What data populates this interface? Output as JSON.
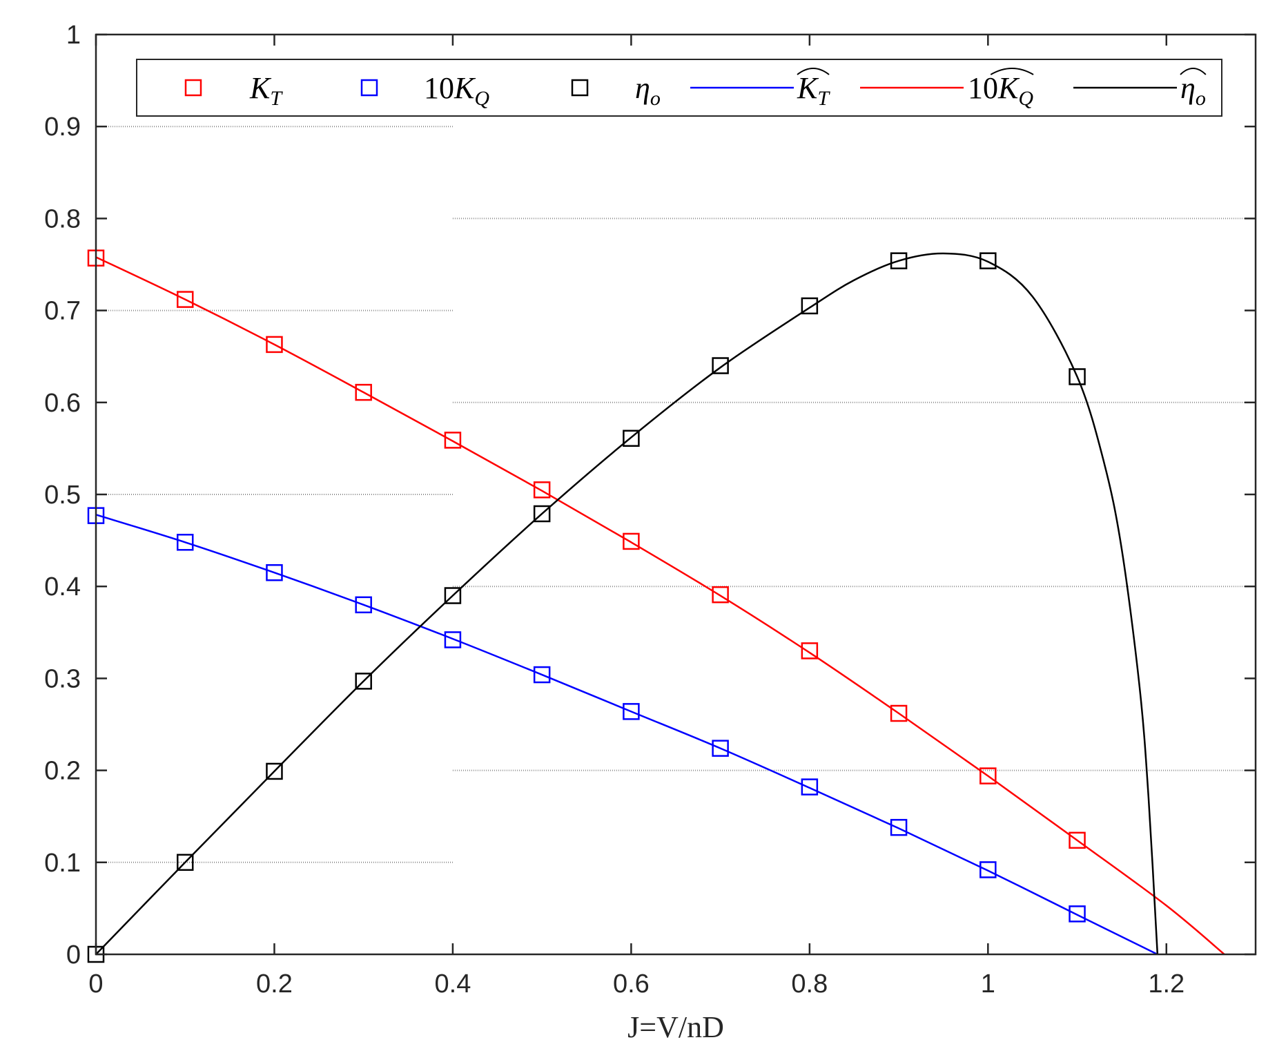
{
  "chart_data": {
    "type": "line",
    "title": "",
    "xlabel": "J=V/nD",
    "ylabel": "",
    "xlim": [
      0,
      1.3
    ],
    "ylim": [
      0,
      1
    ],
    "xticks": [
      "0",
      "0.2",
      "0.4",
      "0.6",
      "0.8",
      "1",
      "1.2"
    ],
    "yticks": [
      "0",
      "0.1",
      "0.2",
      "0.3",
      "0.4",
      "0.5",
      "0.6",
      "0.7",
      "0.8",
      "0.9",
      "1"
    ],
    "grid": "horizontal dotted lines",
    "legend_position": "top",
    "colors": {
      "red": "#ff0000",
      "blue": "#0000ff",
      "black": "#000000"
    },
    "series": [
      {
        "name": "K_T",
        "label": "K",
        "sub": "T",
        "hat": false,
        "style": "markers",
        "marker": "square",
        "color": "#ff0000",
        "x": [
          0,
          0.1,
          0.2,
          0.3,
          0.4,
          0.5,
          0.6,
          0.7,
          0.8,
          0.9,
          1.0,
          1.1
        ],
        "y": [
          0.757,
          0.712,
          0.663,
          0.611,
          0.559,
          0.505,
          0.449,
          0.391,
          0.33,
          0.262,
          0.194,
          0.124
        ]
      },
      {
        "name": "10K_Q",
        "label": "10K",
        "sub": "Q",
        "hat": false,
        "style": "markers",
        "marker": "square",
        "color": "#0000ff",
        "x": [
          0,
          0.1,
          0.2,
          0.3,
          0.4,
          0.5,
          0.6,
          0.7,
          0.8,
          0.9,
          1.0,
          1.1
        ],
        "y": [
          0.477,
          0.448,
          0.415,
          0.38,
          0.342,
          0.304,
          0.264,
          0.224,
          0.182,
          0.138,
          0.092,
          0.044
        ]
      },
      {
        "name": "η_o",
        "label": "η",
        "sub": "o",
        "hat": false,
        "style": "markers",
        "marker": "square",
        "color": "#000000",
        "x": [
          0,
          0.1,
          0.2,
          0.3,
          0.4,
          0.5,
          0.6,
          0.7,
          0.8,
          0.9,
          1.0,
          1.1
        ],
        "y": [
          0.0,
          0.1,
          0.199,
          0.297,
          0.39,
          0.479,
          0.561,
          0.64,
          0.705,
          0.754,
          0.754,
          0.628
        ]
      },
      {
        "name": "K_T hat",
        "label": "K",
        "sub": "T",
        "hat": true,
        "style": "line",
        "color": "#0000ff",
        "x": [
          0,
          0.1,
          0.2,
          0.3,
          0.4,
          0.5,
          0.6,
          0.7,
          0.8,
          0.9,
          1.0,
          1.1,
          1.19
        ],
        "y": [
          0.478,
          0.448,
          0.415,
          0.38,
          0.343,
          0.304,
          0.264,
          0.224,
          0.181,
          0.137,
          0.091,
          0.043,
          0.0
        ]
      },
      {
        "name": "10K_Q hat",
        "label": "10K",
        "sub": "Q",
        "hat": true,
        "style": "line",
        "color": "#ff0000",
        "x": [
          0,
          0.1,
          0.2,
          0.3,
          0.4,
          0.5,
          0.6,
          0.7,
          0.8,
          0.9,
          1.0,
          1.1,
          1.2,
          1.265
        ],
        "y": [
          0.758,
          0.712,
          0.663,
          0.611,
          0.558,
          0.504,
          0.448,
          0.39,
          0.328,
          0.262,
          0.194,
          0.124,
          0.053,
          0.0
        ]
      },
      {
        "name": "η_o hat",
        "label": "η",
        "sub": "o",
        "hat": true,
        "style": "line",
        "color": "#000000",
        "x": [
          0,
          0.1,
          0.2,
          0.3,
          0.4,
          0.5,
          0.6,
          0.7,
          0.8,
          0.85,
          0.9,
          0.95,
          1.0,
          1.05,
          1.1,
          1.13,
          1.15,
          1.17,
          1.18,
          1.19
        ],
        "y": [
          0.0,
          0.1,
          0.199,
          0.297,
          0.39,
          0.479,
          0.562,
          0.638,
          0.703,
          0.733,
          0.754,
          0.762,
          0.753,
          0.715,
          0.628,
          0.535,
          0.44,
          0.29,
          0.17,
          0.0
        ]
      }
    ]
  }
}
